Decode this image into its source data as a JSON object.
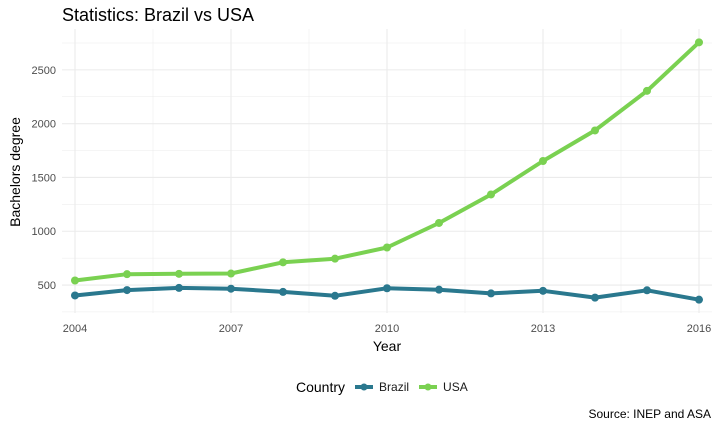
{
  "chart_data": {
    "type": "line",
    "title": "Statistics: Brazil vs USA",
    "xlabel": "Year",
    "ylabel": "Bachelors degree",
    "caption": "Source: INEP and ASA",
    "x": [
      2004,
      2005,
      2006,
      2007,
      2008,
      2009,
      2010,
      2011,
      2012,
      2013,
      2014,
      2015,
      2016
    ],
    "x_ticks": [
      2004,
      2007,
      2010,
      2013,
      2016
    ],
    "y_ticks": [
      500,
      1000,
      1500,
      2000,
      2500
    ],
    "xlim": [
      2003.75,
      2016.25
    ],
    "ylim": [
      240,
      2880
    ],
    "grid": true,
    "legend_title": "Country",
    "legend_position": "bottom",
    "series": [
      {
        "name": "Brazil",
        "color": "#2a788e",
        "values": [
          403,
          453,
          473,
          466,
          436,
          400,
          470,
          457,
          422,
          446,
          383,
          451,
          364
        ]
      },
      {
        "name": "USA",
        "color": "#7ad151",
        "values": [
          542,
          601,
          604,
          607,
          711,
          745,
          849,
          1077,
          1342,
          1653,
          1937,
          2305,
          2756
        ]
      }
    ]
  }
}
